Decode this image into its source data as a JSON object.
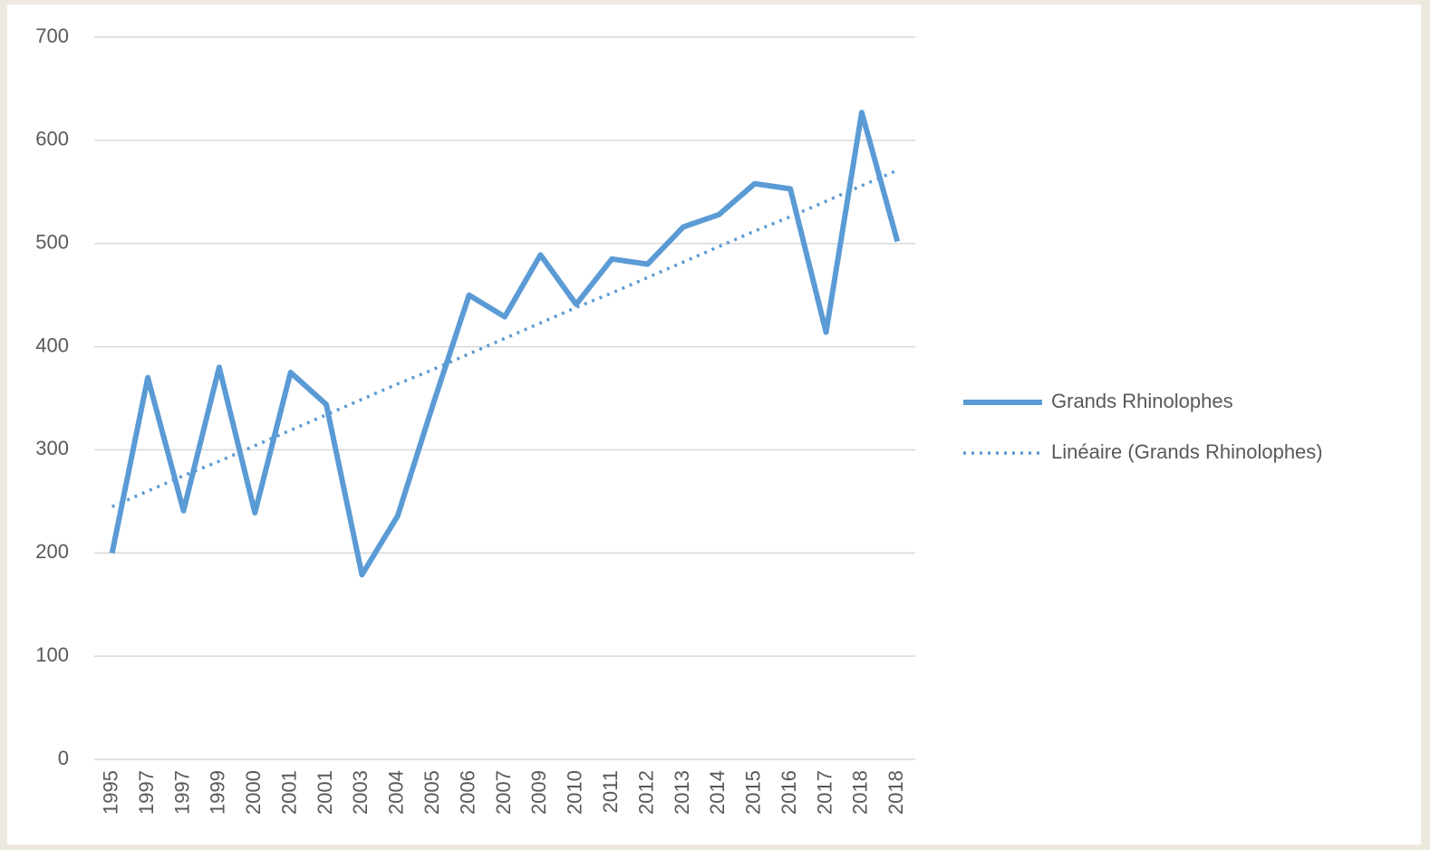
{
  "chart_data": {
    "type": "line",
    "categories": [
      "1995",
      "1997",
      "1997",
      "1999",
      "2000",
      "2001",
      "2001",
      "2003",
      "2004",
      "2005",
      "2006",
      "2007",
      "2009",
      "2010",
      "2011",
      "2012",
      "2013",
      "2014",
      "2015",
      "2016",
      "2017",
      "2018",
      "2018"
    ],
    "series": [
      {
        "name": "Grands Rhinolophes",
        "color": "#5b9bd5",
        "dash": false,
        "values": [
          200,
          370,
          241,
          380,
          239,
          375,
          344,
          179,
          236,
          345,
          450,
          429,
          489,
          441,
          485,
          480,
          516,
          528,
          558,
          553,
          414,
          627,
          502
        ]
      },
      {
        "name": "Linéaire (Grands Rhinolophes)",
        "color": "#5b9bd5",
        "dash": true,
        "values": [
          245,
          260,
          275,
          289,
          304,
          319,
          334,
          349,
          364,
          378,
          393,
          408,
          423,
          438,
          452,
          467,
          482,
          497,
          512,
          526,
          541,
          556,
          571
        ]
      }
    ],
    "ylim": [
      0,
      700
    ],
    "yticks": [
      0,
      100,
      200,
      300,
      400,
      500,
      600,
      700
    ],
    "grid": true,
    "legend": "right"
  }
}
